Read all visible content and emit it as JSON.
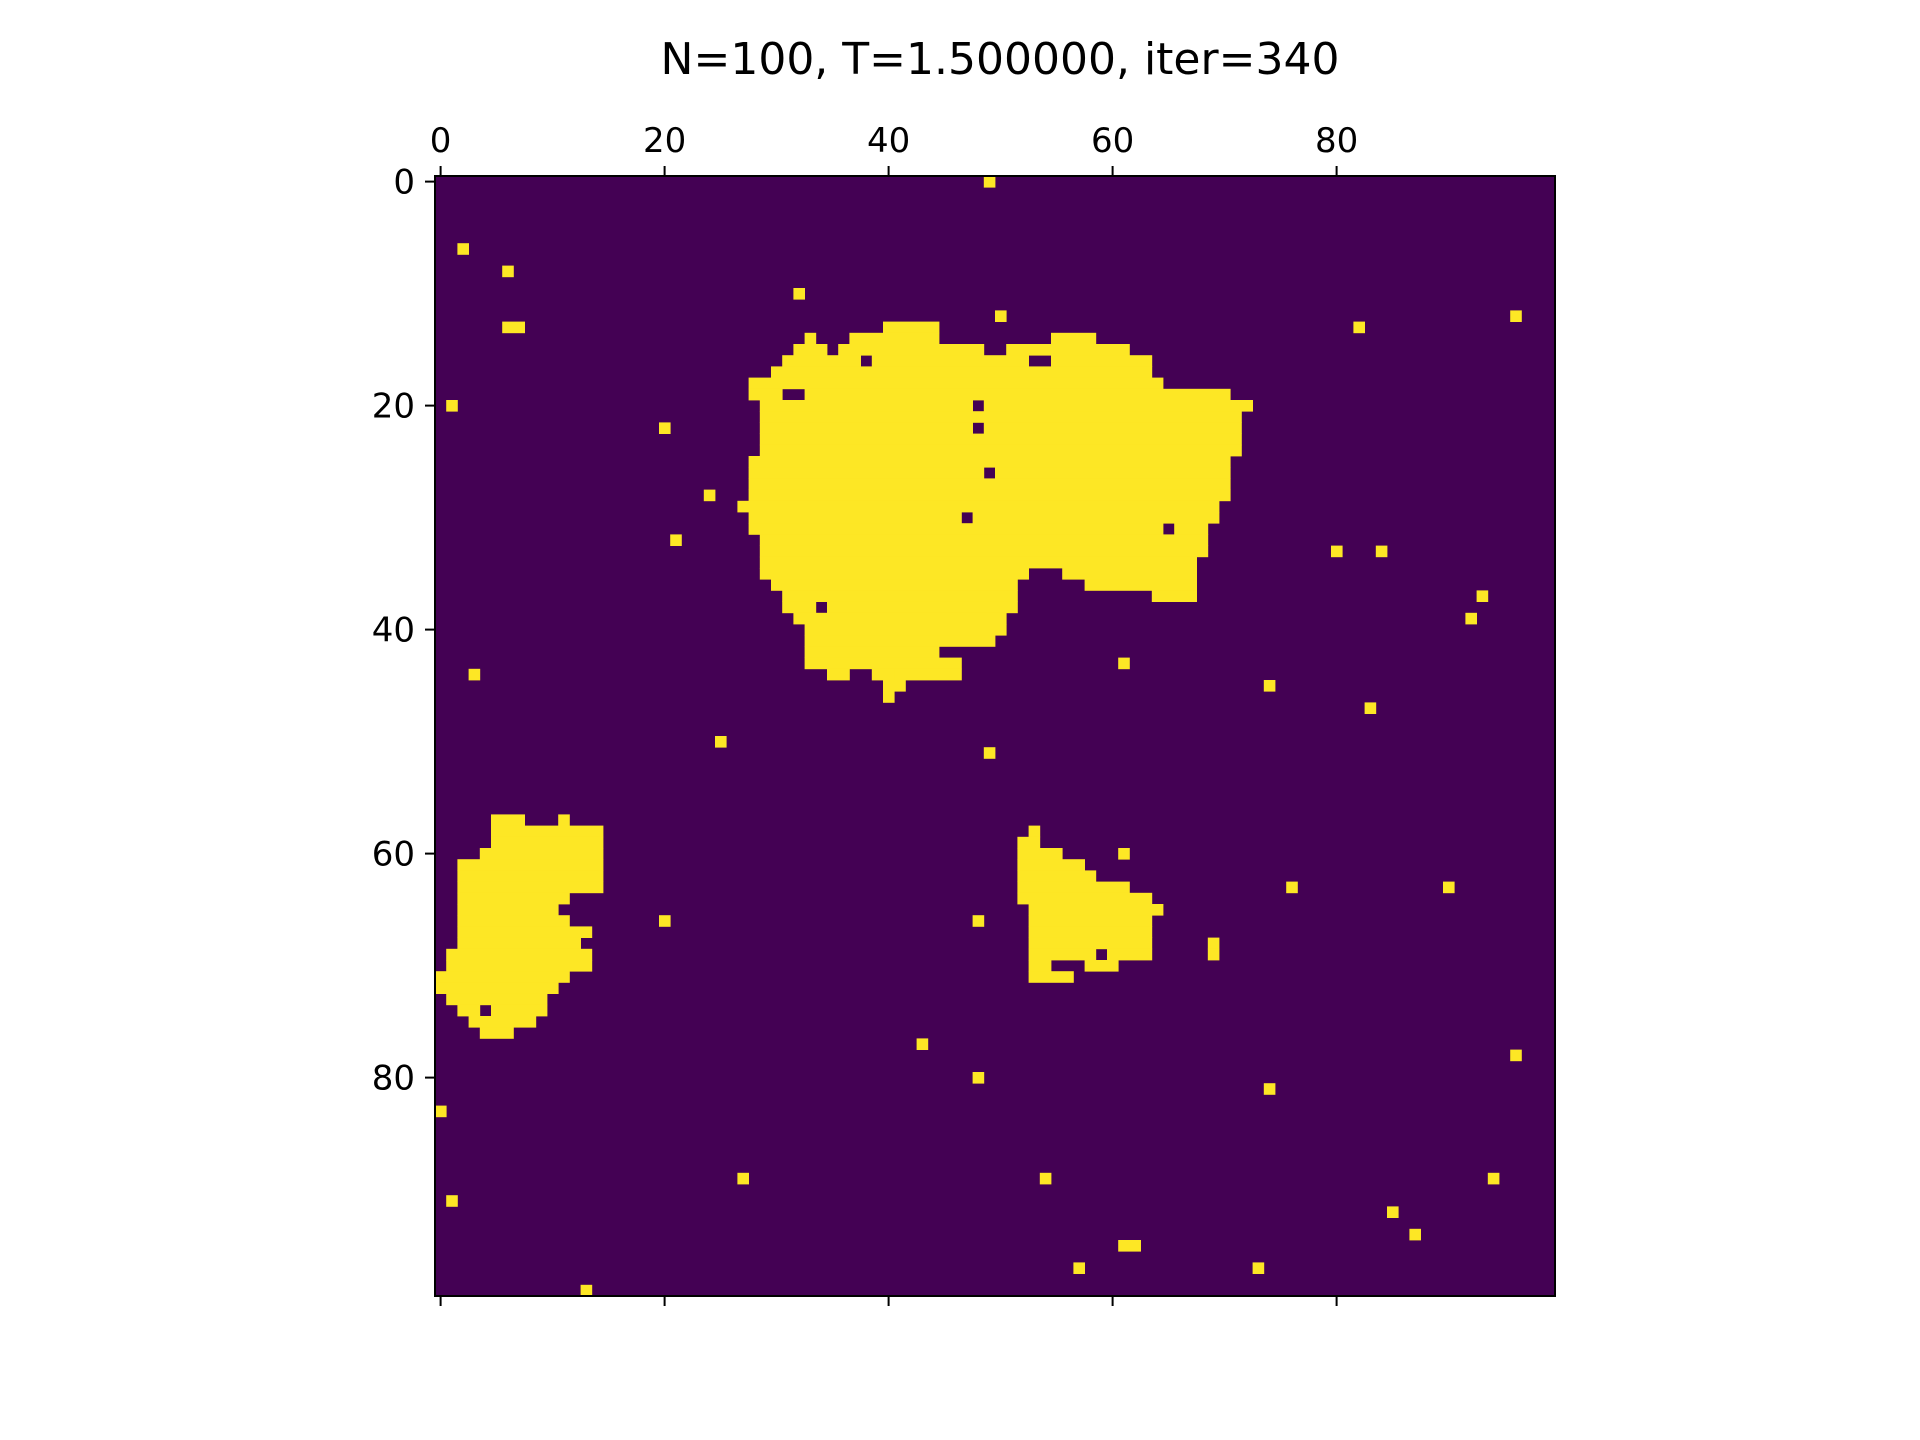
{
  "chart_data": {
    "type": "heatmap",
    "title": "N=100, T=1.500000, iter=340",
    "grid_size": 100,
    "xlim": [
      -0.5,
      99.5
    ],
    "ylim": [
      99.5,
      -0.5
    ],
    "x_ticks": [
      0,
      20,
      40,
      60,
      80
    ],
    "y_ticks": [
      0,
      20,
      40,
      60,
      80
    ],
    "x_tick_labels": [
      "0",
      "20",
      "40",
      "60",
      "80"
    ],
    "y_tick_labels": [
      "0",
      "20",
      "40",
      "60",
      "80"
    ],
    "x_axis_position": "top",
    "colors": {
      "low": "#440154",
      "high": "#fde725"
    },
    "state_legend": {
      "low": -1,
      "high": 1
    },
    "up_runs_by_row": [
      [
        [
          49,
          49
        ]
      ],
      [],
      [],
      [],
      [],
      [],
      [
        [
          2,
          2
        ]
      ],
      [],
      [
        [
          6,
          6
        ]
      ],
      [],
      [
        [
          32,
          32
        ]
      ],
      [],
      [
        [
          50,
          50
        ],
        [
          96,
          96
        ]
      ],
      [
        [
          6,
          7
        ],
        [
          40,
          44
        ],
        [
          82,
          82
        ]
      ],
      [
        [
          33,
          33
        ],
        [
          37,
          44
        ],
        [
          55,
          58
        ]
      ],
      [
        [
          32,
          34
        ],
        [
          36,
          48
        ],
        [
          51,
          61
        ]
      ],
      [
        [
          31,
          37
        ],
        [
          39,
          52
        ],
        [
          55,
          63
        ]
      ],
      [
        [
          30,
          54
        ],
        [
          55,
          63
        ]
      ],
      [
        [
          28,
          54
        ],
        [
          55,
          64
        ]
      ],
      [
        [
          28,
          30
        ],
        [
          33,
          70
        ]
      ],
      [
        [
          1,
          1
        ],
        [
          29,
          47
        ],
        [
          49,
          72
        ]
      ],
      [
        [
          29,
          71
        ]
      ],
      [
        [
          20,
          20
        ],
        [
          29,
          47
        ],
        [
          49,
          71
        ]
      ],
      [
        [
          29,
          71
        ]
      ],
      [
        [
          29,
          71
        ]
      ],
      [
        [
          28,
          70
        ]
      ],
      [
        [
          28,
          48
        ],
        [
          50,
          70
        ]
      ],
      [
        [
          28,
          70
        ]
      ],
      [
        [
          24,
          24
        ],
        [
          28,
          70
        ]
      ],
      [
        [
          27,
          69
        ]
      ],
      [
        [
          28,
          46
        ],
        [
          48,
          69
        ]
      ],
      [
        [
          28,
          64
        ],
        [
          66,
          68
        ]
      ],
      [
        [
          21,
          21
        ],
        [
          29,
          68
        ]
      ],
      [
        [
          29,
          68
        ],
        [
          80,
          80
        ],
        [
          84,
          84
        ]
      ],
      [
        [
          29,
          67
        ]
      ],
      [
        [
          29,
          52
        ],
        [
          56,
          67
        ]
      ],
      [
        [
          30,
          51
        ],
        [
          58,
          67
        ]
      ],
      [
        [
          31,
          51
        ],
        [
          64,
          67
        ],
        [
          93,
          93
        ]
      ],
      [
        [
          31,
          33
        ],
        [
          35,
          51
        ]
      ],
      [
        [
          32,
          50
        ],
        [
          92,
          92
        ]
      ],
      [
        [
          33,
          50
        ]
      ],
      [
        [
          33,
          49
        ]
      ],
      [
        [
          33,
          44
        ]
      ],
      [
        [
          33,
          46
        ],
        [
          61,
          61
        ]
      ],
      [
        [
          3,
          3
        ],
        [
          35,
          36
        ],
        [
          39,
          40
        ],
        [
          41,
          46
        ]
      ],
      [
        [
          40,
          41
        ],
        [
          74,
          74
        ]
      ],
      [
        [
          40,
          40
        ]
      ],
      [
        [
          83,
          83
        ]
      ],
      [],
      [],
      [
        [
          25,
          25
        ]
      ],
      [
        [
          49,
          49
        ]
      ],
      [],
      [],
      [],
      [],
      [],
      [
        [
          5,
          7
        ],
        [
          11,
          11
        ]
      ],
      [
        [
          5,
          14
        ],
        [
          53,
          53
        ]
      ],
      [
        [
          5,
          14
        ],
        [
          52,
          53
        ]
      ],
      [
        [
          4,
          14
        ],
        [
          52,
          55
        ],
        [
          61,
          61
        ]
      ],
      [
        [
          2,
          14
        ],
        [
          52,
          57
        ]
      ],
      [
        [
          2,
          14
        ],
        [
          52,
          58
        ]
      ],
      [
        [
          2,
          14
        ],
        [
          52,
          61
        ],
        [
          76,
          76
        ],
        [
          90,
          90
        ]
      ],
      [
        [
          2,
          11
        ],
        [
          52,
          63
        ]
      ],
      [
        [
          2,
          10
        ],
        [
          53,
          64
        ]
      ],
      [
        [
          2,
          11
        ],
        [
          20,
          20
        ],
        [
          48,
          48
        ],
        [
          53,
          63
        ]
      ],
      [
        [
          2,
          13
        ],
        [
          53,
          63
        ]
      ],
      [
        [
          2,
          12
        ],
        [
          53,
          63
        ],
        [
          69,
          69
        ]
      ],
      [
        [
          1,
          13
        ],
        [
          53,
          58
        ],
        [
          60,
          63
        ],
        [
          69,
          69
        ]
      ],
      [
        [
          1,
          13
        ],
        [
          53,
          54
        ],
        [
          58,
          60
        ]
      ],
      [
        [
          0,
          11
        ],
        [
          53,
          56
        ]
      ],
      [
        [
          0,
          10
        ]
      ],
      [
        [
          1,
          9
        ]
      ],
      [
        [
          2,
          3
        ],
        [
          5,
          9
        ]
      ],
      [
        [
          3,
          8
        ]
      ],
      [
        [
          4,
          6
        ]
      ],
      [
        [
          43,
          43
        ]
      ],
      [
        [
          96,
          96
        ]
      ],
      [],
      [
        [
          48,
          48
        ]
      ],
      [
        [
          74,
          74
        ]
      ],
      [],
      [
        [
          0,
          0
        ]
      ],
      [],
      [],
      [],
      [],
      [],
      [
        [
          27,
          27
        ],
        [
          54,
          54
        ],
        [
          94,
          94
        ]
      ],
      [],
      [
        [
          1,
          1
        ]
      ],
      [
        [
          85,
          85
        ]
      ],
      [],
      [
        [
          87,
          87
        ]
      ],
      [
        [
          61,
          62
        ]
      ],
      [],
      [
        [
          57,
          57
        ],
        [
          73,
          73
        ]
      ],
      [],
      [
        [
          13,
          13
        ]
      ]
    ]
  }
}
